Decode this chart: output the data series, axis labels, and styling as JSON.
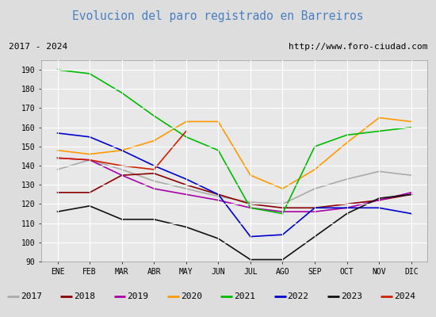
{
  "title": "Evolucion del paro registrado en Barreiros",
  "title_color": "#4a7fc1",
  "title_bg": "#ffffff",
  "subtitle_left": "2017 - 2024",
  "subtitle_right": "http://www.foro-ciudad.com",
  "months": [
    "ENE",
    "FEB",
    "MAR",
    "ABR",
    "MAY",
    "JUN",
    "JUL",
    "AGO",
    "SEP",
    "OCT",
    "NOV",
    "DIC"
  ],
  "ylim": [
    90,
    195
  ],
  "yticks": [
    90,
    100,
    110,
    120,
    130,
    140,
    150,
    160,
    170,
    180,
    190
  ],
  "series": {
    "2017": {
      "color": "#aaaaaa",
      "data": [
        138,
        143,
        138,
        132,
        128,
        124,
        121,
        120,
        128,
        133,
        137,
        135
      ]
    },
    "2018": {
      "color": "#880000",
      "data": [
        126,
        126,
        135,
        136,
        130,
        125,
        120,
        118,
        118,
        120,
        122,
        125
      ]
    },
    "2019": {
      "color": "#aa00aa",
      "data": [
        144,
        143,
        135,
        128,
        125,
        122,
        118,
        116,
        116,
        118,
        122,
        126
      ]
    },
    "2020": {
      "color": "#ff9900",
      "data": [
        148,
        146,
        148,
        153,
        163,
        163,
        135,
        128,
        138,
        152,
        165,
        163
      ]
    },
    "2021": {
      "color": "#00bb00",
      "data": [
        190,
        188,
        178,
        166,
        155,
        148,
        118,
        115,
        150,
        156,
        158,
        160
      ]
    },
    "2022": {
      "color": "#0000cc",
      "data": [
        157,
        155,
        148,
        140,
        133,
        125,
        103,
        104,
        118,
        118,
        118,
        115
      ]
    },
    "2023": {
      "color": "#111111",
      "data": [
        116,
        119,
        112,
        112,
        108,
        102,
        91,
        91,
        103,
        115,
        123,
        125
      ]
    },
    "2024": {
      "color": "#cc2200",
      "data": [
        144,
        143,
        140,
        138,
        158,
        null,
        null,
        null,
        null,
        null,
        null,
        null
      ]
    }
  },
  "legend_order": [
    "2017",
    "2018",
    "2019",
    "2020",
    "2021",
    "2022",
    "2023",
    "2024"
  ],
  "outer_bg": "#dddddd",
  "plot_bg": "#e8e8e8",
  "grid_color": "#ffffff"
}
